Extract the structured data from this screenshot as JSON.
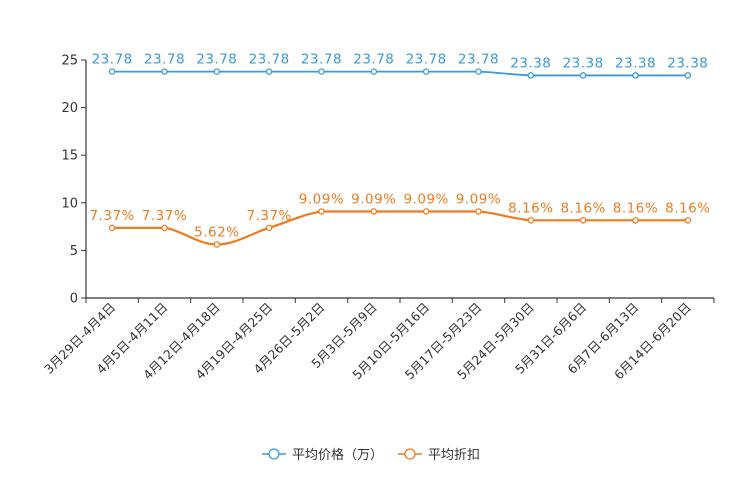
{
  "chart_data": {
    "type": "line",
    "categories": [
      "3月29日-4月4日",
      "4月5日-4月11日",
      "4月12日-4月18日",
      "4月19日-4月25日",
      "4月26日-5月2日",
      "5月3日-5月9日",
      "5月10日-5月16日",
      "5月17日-5月23日",
      "5月24日-5月30日",
      "5月31日-6月6日",
      "6月7日-6月13日",
      "6月14日-6月20日"
    ],
    "ylim": [
      0,
      25
    ],
    "yticks": [
      0,
      5,
      10,
      15,
      20,
      25
    ],
    "series": [
      {
        "name": "平均价格（万）",
        "color": "#3a9ad9",
        "values": [
          23.78,
          23.78,
          23.78,
          23.78,
          23.78,
          23.78,
          23.78,
          23.78,
          23.38,
          23.38,
          23.38,
          23.38
        ],
        "labels": [
          "23.78",
          "23.78",
          "23.78",
          "23.78",
          "23.78",
          "23.78",
          "23.78",
          "23.78",
          "23.38",
          "23.38",
          "23.38",
          "23.38"
        ]
      },
      {
        "name": "平均折扣",
        "color": "#f07b1d",
        "values": [
          7.37,
          7.37,
          5.62,
          7.37,
          9.09,
          9.09,
          9.09,
          9.09,
          8.16,
          8.16,
          8.16,
          8.16
        ],
        "labels": [
          "7.37%",
          "7.37%",
          "5.62%",
          "7.37%",
          "9.09%",
          "9.09%",
          "9.09%",
          "9.09%",
          "8.16%",
          "8.16%",
          "8.16%",
          "8.16%"
        ]
      }
    ],
    "legend_position": "bottom-center",
    "grid": false
  }
}
